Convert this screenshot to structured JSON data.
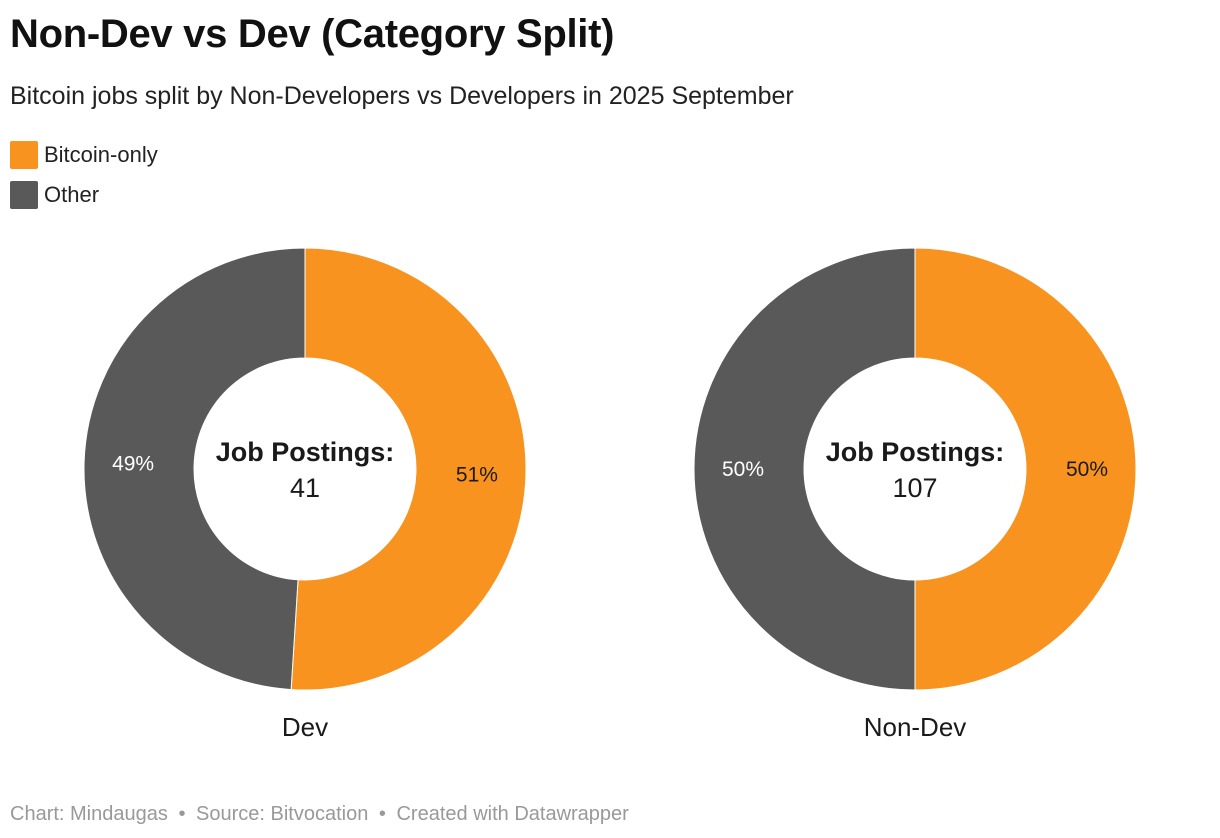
{
  "title": "Non-Dev vs Dev (Category Split)",
  "subtitle": "Bitcoin jobs split by Non-Developers vs Developers in 2025 September",
  "legend": [
    {
      "label": "Bitcoin-only",
      "color": "#f7931e"
    },
    {
      "label": "Other",
      "color": "#595959"
    }
  ],
  "chart_data": [
    {
      "type": "pie",
      "variant": "donut",
      "name": "Dev",
      "center_label": "Job Postings:",
      "center_value": "41",
      "slices": [
        {
          "label": "Bitcoin-only",
          "value": 51,
          "display": "51%",
          "color": "#f7931e"
        },
        {
          "label": "Other",
          "value": 49,
          "display": "49%",
          "color": "#595959"
        }
      ]
    },
    {
      "type": "pie",
      "variant": "donut",
      "name": "Non-Dev",
      "center_label": "Job Postings:",
      "center_value": "107",
      "slices": [
        {
          "label": "Bitcoin-only",
          "value": 50,
          "display": "50%",
          "color": "#f7931e"
        },
        {
          "label": "Other",
          "value": 50,
          "display": "50%",
          "color": "#595959"
        }
      ]
    }
  ],
  "footer": {
    "chart": "Chart: Mindaugas",
    "source": "Source: Bitvocation",
    "created": "Created with Datawrapper",
    "separator": "•"
  }
}
